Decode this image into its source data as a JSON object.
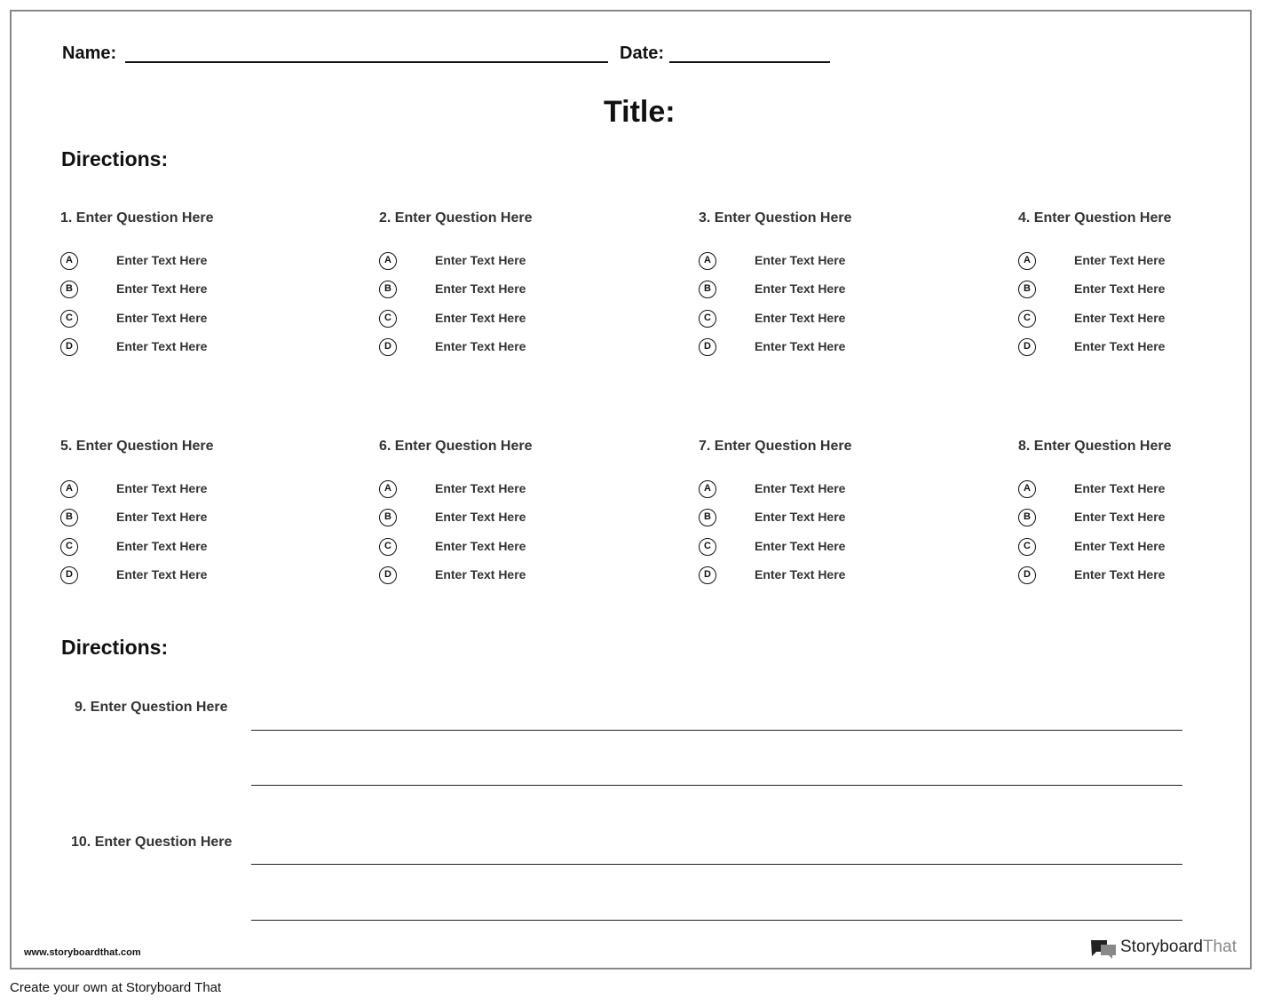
{
  "header": {
    "name_label": "Name:",
    "date_label": "Date:",
    "title": "Title:"
  },
  "section1": {
    "directions": "Directions:",
    "questions": [
      {
        "label": "1. Enter Question Here",
        "options": [
          {
            "letter": "A",
            "text": "Enter Text Here"
          },
          {
            "letter": "B",
            "text": "Enter Text Here"
          },
          {
            "letter": "C",
            "text": "Enter Text Here"
          },
          {
            "letter": "D",
            "text": "Enter Text Here"
          }
        ]
      },
      {
        "label": "2. Enter Question Here",
        "options": [
          {
            "letter": "A",
            "text": "Enter Text Here"
          },
          {
            "letter": "B",
            "text": "Enter Text Here"
          },
          {
            "letter": "C",
            "text": "Enter Text Here"
          },
          {
            "letter": "D",
            "text": "Enter Text Here"
          }
        ]
      },
      {
        "label": "3. Enter Question Here",
        "options": [
          {
            "letter": "A",
            "text": "Enter Text Here"
          },
          {
            "letter": "B",
            "text": "Enter Text Here"
          },
          {
            "letter": "C",
            "text": "Enter Text Here"
          },
          {
            "letter": "D",
            "text": "Enter Text Here"
          }
        ]
      },
      {
        "label": "4. Enter Question Here",
        "options": [
          {
            "letter": "A",
            "text": "Enter Text Here"
          },
          {
            "letter": "B",
            "text": "Enter Text Here"
          },
          {
            "letter": "C",
            "text": "Enter Text Here"
          },
          {
            "letter": "D",
            "text": "Enter Text Here"
          }
        ]
      },
      {
        "label": "5. Enter Question Here",
        "options": [
          {
            "letter": "A",
            "text": "Enter Text Here"
          },
          {
            "letter": "B",
            "text": "Enter Text Here"
          },
          {
            "letter": "C",
            "text": "Enter Text Here"
          },
          {
            "letter": "D",
            "text": "Enter Text Here"
          }
        ]
      },
      {
        "label": "6. Enter Question Here",
        "options": [
          {
            "letter": "A",
            "text": "Enter Text Here"
          },
          {
            "letter": "B",
            "text": "Enter Text Here"
          },
          {
            "letter": "C",
            "text": "Enter Text Here"
          },
          {
            "letter": "D",
            "text": "Enter Text Here"
          }
        ]
      },
      {
        "label": "7. Enter Question Here",
        "options": [
          {
            "letter": "A",
            "text": "Enter Text Here"
          },
          {
            "letter": "B",
            "text": "Enter Text Here"
          },
          {
            "letter": "C",
            "text": "Enter Text Here"
          },
          {
            "letter": "D",
            "text": "Enter Text Here"
          }
        ]
      },
      {
        "label": "8. Enter Question Here",
        "options": [
          {
            "letter": "A",
            "text": "Enter Text Here"
          },
          {
            "letter": "B",
            "text": "Enter Text Here"
          },
          {
            "letter": "C",
            "text": "Enter Text Here"
          },
          {
            "letter": "D",
            "text": "Enter Text Here"
          }
        ]
      }
    ]
  },
  "section2": {
    "directions": "Directions:",
    "questions": [
      {
        "label": "9. Enter Question Here"
      },
      {
        "label": "10. Enter Question Here"
      }
    ]
  },
  "footer": {
    "url": "www.storyboardthat.com",
    "logo_main": "Storyboard",
    "logo_accent": "That"
  },
  "caption": "Create your own at Storyboard That"
}
